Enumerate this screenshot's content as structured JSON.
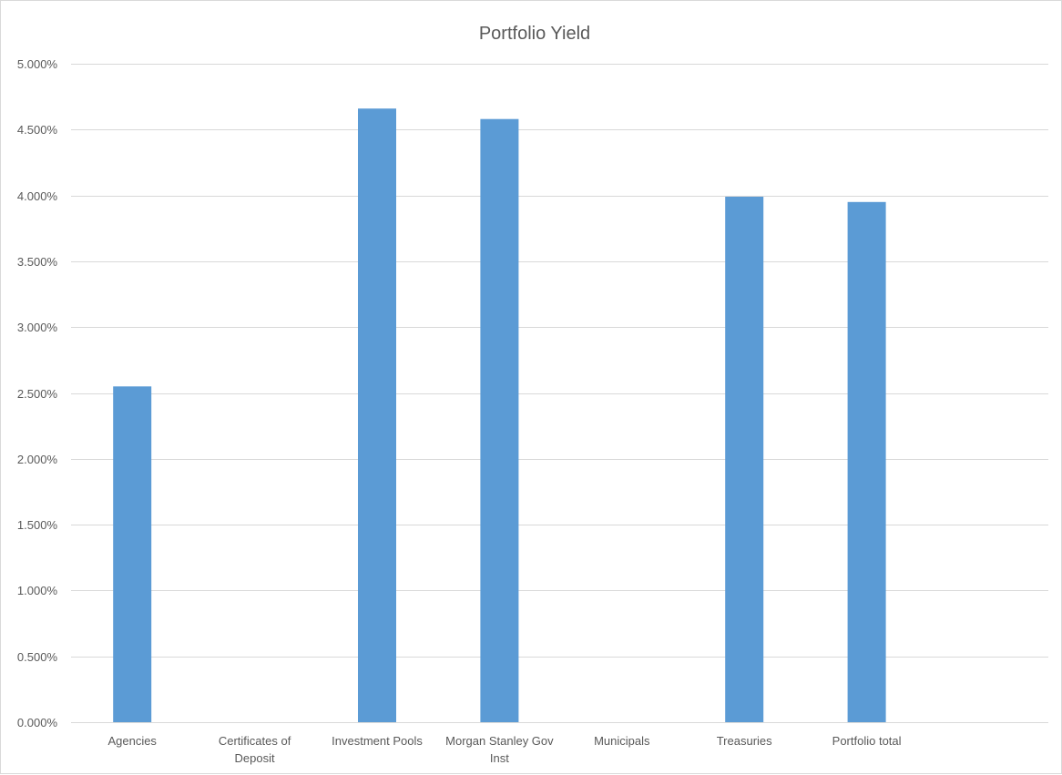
{
  "chart_data": {
    "type": "bar",
    "title": "Portfolio Yield",
    "xlabel": "",
    "ylabel": "",
    "categories": [
      [
        "Agencies"
      ],
      [
        "Certificates of",
        "Deposit"
      ],
      [
        "Investment Pools"
      ],
      [
        "Morgan Stanley Gov",
        "Inst"
      ],
      [
        "Municipals"
      ],
      [
        "Treasuries"
      ],
      [
        "Portfolio total"
      ]
    ],
    "values": [
      2.55,
      0,
      4.66,
      4.58,
      0,
      3.99,
      3.95
    ],
    "ylim": [
      0,
      5
    ],
    "y_ticks": [
      "0.000%",
      "0.500%",
      "1.000%",
      "1.500%",
      "2.000%",
      "2.500%",
      "3.000%",
      "3.500%",
      "4.000%",
      "4.500%",
      "5.000%"
    ],
    "grid": true,
    "legend": "none",
    "bar_color": "#5b9bd5"
  }
}
